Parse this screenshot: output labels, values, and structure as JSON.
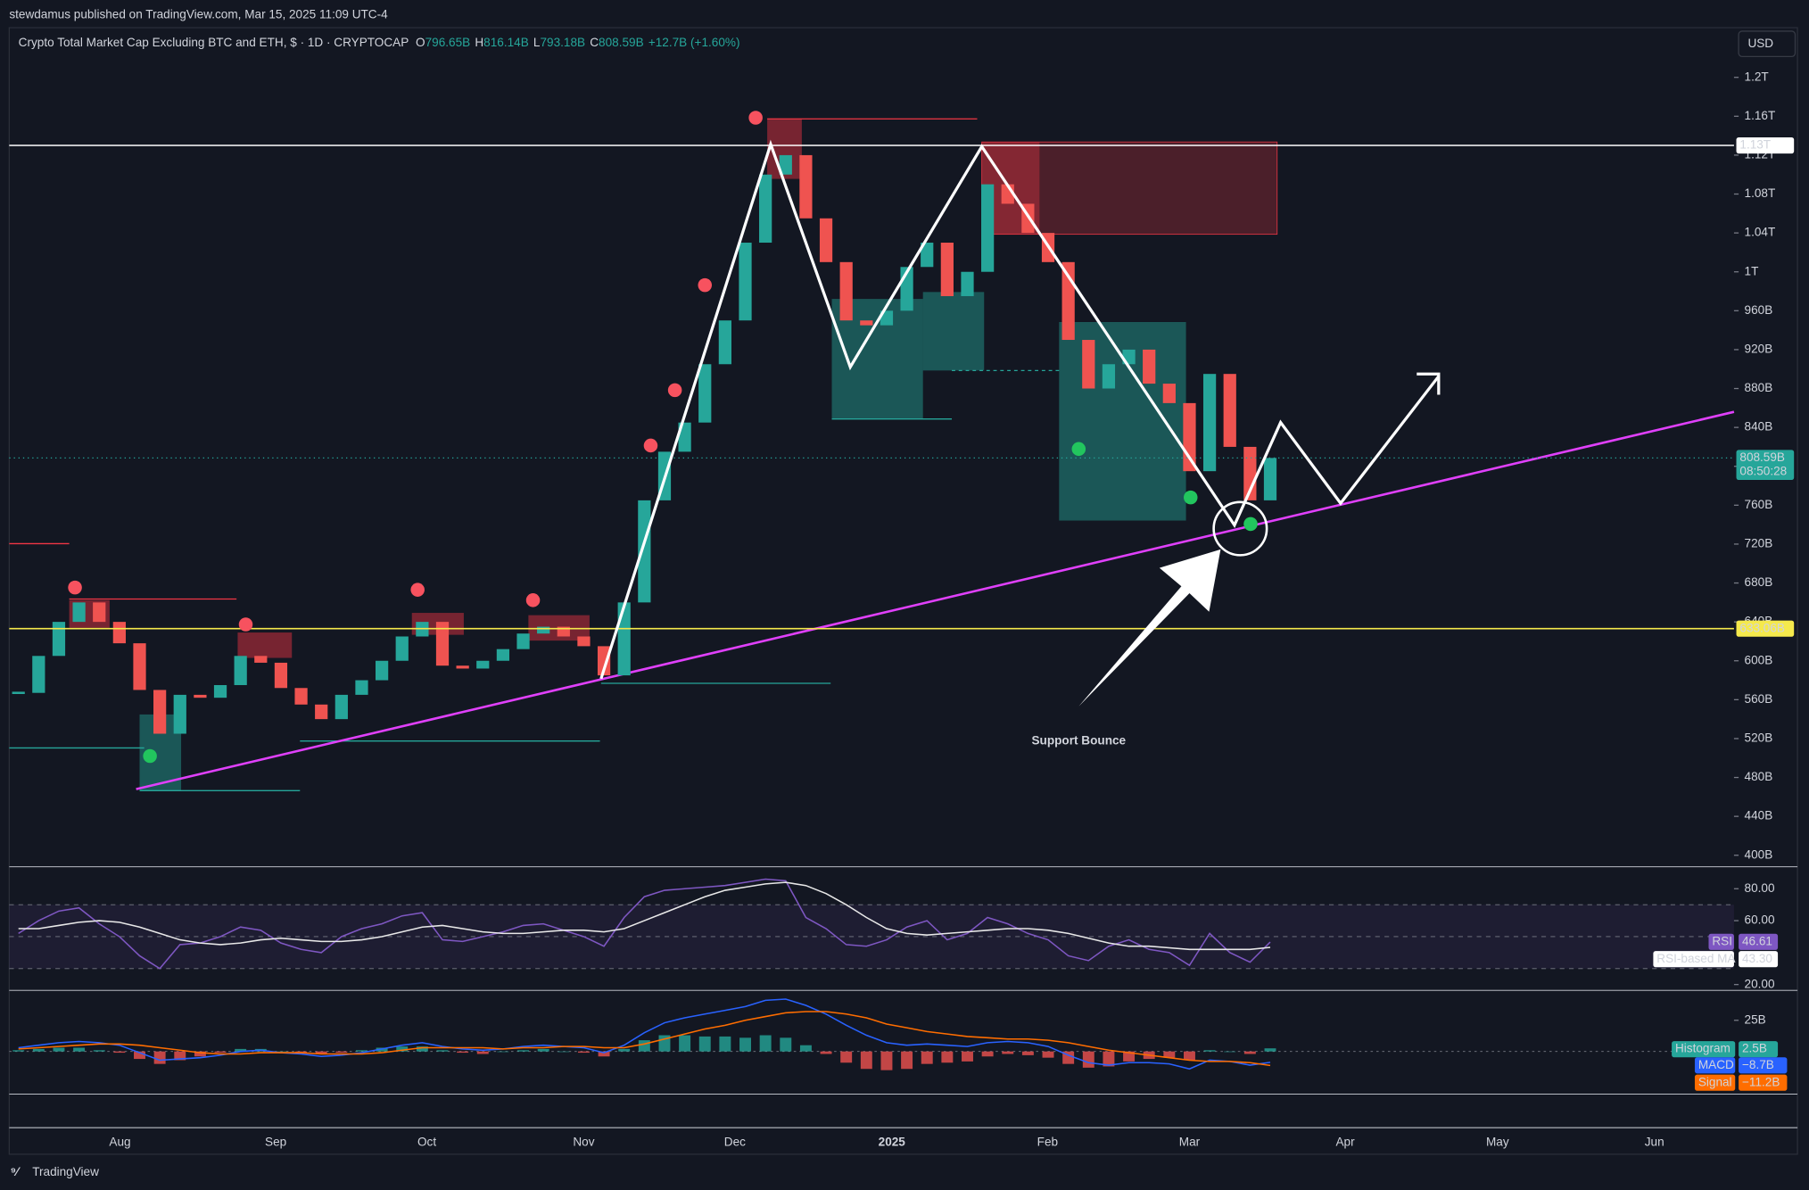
{
  "header": {
    "publisher": "stewdamus published on TradingView.com, Mar 15, 2025 11:09 UTC-4",
    "symbol": "Crypto Total Market Cap Excluding BTC and ETH, $ · 1D · CRYPTOCAP",
    "ohlc": [
      {
        "key": "O",
        "value": "796.65B"
      },
      {
        "key": "H",
        "value": "816.14B"
      },
      {
        "key": "L",
        "value": "793.18B"
      },
      {
        "key": "C",
        "value": "808.59B"
      }
    ],
    "change": "+12.7B (+1.60%)",
    "currency": "USD"
  },
  "footer": "TradingView",
  "chart_data": {
    "type": "candlestick",
    "annotation": "Support Bounce",
    "closes": [
      567,
      605,
      640,
      660,
      640,
      618,
      570,
      525,
      565,
      562,
      575,
      605,
      598,
      572,
      555,
      540,
      565,
      580,
      600,
      625,
      640,
      595,
      592,
      600,
      612,
      628,
      635,
      625,
      615,
      585,
      660,
      765,
      815,
      845,
      905,
      950,
      1030,
      1100,
      1120,
      1055,
      1010,
      950,
      945,
      960,
      1005,
      1030,
      975,
      1000,
      1090,
      1070,
      1040,
      1010,
      930,
      880,
      905,
      920,
      885,
      865,
      795,
      895,
      820,
      765,
      808.59
    ],
    "up_color": "#26a69a",
    "down_color": "#ef5350",
    "ylim": [
      389.3,
      1220.2
    ],
    "yticks": [
      {
        "value": 400,
        "label": "400B"
      },
      {
        "value": 440,
        "label": "440B"
      },
      {
        "value": 480,
        "label": "480B"
      },
      {
        "value": 520,
        "label": "520B"
      },
      {
        "value": 560,
        "label": "560B"
      },
      {
        "value": 600,
        "label": "600B"
      },
      {
        "value": 640,
        "label": "640B"
      },
      {
        "value": 680,
        "label": "680B"
      },
      {
        "value": 720,
        "label": "720B"
      },
      {
        "value": 760,
        "label": "760B"
      },
      {
        "value": 800,
        "label": "800B"
      },
      {
        "value": 840,
        "label": "840B"
      },
      {
        "value": 880,
        "label": "880B"
      },
      {
        "value": 920,
        "label": "920B"
      },
      {
        "value": 960,
        "label": "960B"
      },
      {
        "value": 1000,
        "label": "1T"
      },
      {
        "value": 1040,
        "label": "1.04T"
      },
      {
        "value": 1080,
        "label": "1.08T"
      },
      {
        "value": 1120,
        "label": "1.12T"
      },
      {
        "value": 1160,
        "label": "1.16T"
      },
      {
        "value": 1200,
        "label": "1.2T"
      }
    ],
    "x_labels": [
      "Aug",
      "Sep",
      "Oct",
      "Nov",
      "Dec",
      "2025",
      "Feb",
      "Mar",
      "Apr",
      "May",
      "Jun"
    ],
    "hlines": [
      {
        "value": 1130,
        "label": "1.13T",
        "color": "#ffffff"
      },
      {
        "value": 633.06,
        "label": "633.06B",
        "color": "#f5e94c"
      }
    ],
    "trendline": {
      "from": 468,
      "to": 856,
      "color": "#e040fb"
    },
    "last_price": {
      "value": 808.59,
      "label": "808.59B",
      "countdown": "08:50:28"
    },
    "rsi": {
      "ylim": [
        17.1,
        93
      ],
      "yticks": [
        {
          "value": 80,
          "label": "80.00"
        },
        {
          "value": 60,
          "label": "60.00"
        },
        {
          "value": 20,
          "label": "20.00"
        }
      ],
      "bands": [
        70,
        50,
        30
      ],
      "series": [
        {
          "name": "RSI",
          "color": "#7e57c2",
          "values": [
            52,
            60,
            66,
            68,
            58,
            50,
            38,
            30,
            45,
            46,
            50,
            56,
            54,
            46,
            42,
            40,
            50,
            55,
            58,
            63,
            65,
            48,
            47,
            50,
            53,
            57,
            58,
            54,
            50,
            44,
            62,
            75,
            79,
            80,
            81,
            82,
            84,
            86,
            85,
            62,
            55,
            45,
            44,
            48,
            56,
            60,
            48,
            52,
            62,
            58,
            52,
            48,
            38,
            35,
            44,
            48,
            42,
            40,
            32,
            52,
            40,
            34,
            46.61
          ],
          "last": 46.61
        },
        {
          "name": "RSI-based MA",
          "color": "#e8e8e8",
          "values": [
            55,
            55,
            57,
            59,
            60,
            59,
            56,
            52,
            48,
            46,
            45,
            46,
            48,
            49,
            48,
            47,
            47,
            48,
            50,
            53,
            56,
            57,
            55,
            53,
            52,
            52,
            53,
            54,
            54,
            53,
            55,
            60,
            65,
            70,
            75,
            79,
            81,
            83,
            84,
            82,
            77,
            70,
            62,
            55,
            52,
            51,
            52,
            53,
            54,
            55,
            55,
            54,
            52,
            49,
            46,
            44,
            44,
            43,
            42,
            42,
            42,
            42,
            43.3
          ],
          "last": {
            "value": 43.3,
            "label": "43.30"
          }
        }
      ]
    },
    "macd": {
      "ylim": [
        -34.3,
        47.2
      ],
      "yticks": [
        {
          "value": 25,
          "label": "25B"
        }
      ],
      "histogram": {
        "name": "Histogram",
        "up_color": "#26a69a",
        "down_color": "#ef5350",
        "values": [
          1,
          2,
          3,
          3,
          1,
          -1,
          -6,
          -10,
          -7,
          -4,
          -1,
          2,
          2,
          0,
          -1,
          -2,
          -1,
          1,
          3,
          4,
          4,
          1,
          -1,
          -2,
          0,
          1,
          2,
          0,
          -1,
          -4,
          2,
          9,
          13,
          13,
          12,
          12,
          11,
          13,
          11,
          5,
          -2,
          -9,
          -14,
          -15,
          -14,
          -10,
          -9,
          -8,
          -4,
          -2,
          -3,
          -5,
          -10,
          -13,
          -12,
          -8,
          -6,
          -5,
          -7,
          1,
          0,
          -2,
          2.5
        ],
        "last": {
          "value": 2.5,
          "label": "2.5B"
        }
      },
      "series": [
        {
          "name": "MACD",
          "color": "#2962ff",
          "values": [
            3,
            5,
            7,
            8,
            7,
            5,
            -1,
            -7,
            -6,
            -5,
            -3,
            0,
            1,
            -1,
            -2,
            -4,
            -3,
            -1,
            2,
            5,
            7,
            4,
            2,
            1,
            2,
            4,
            5,
            4,
            3,
            -1,
            5,
            15,
            23,
            27,
            30,
            33,
            36,
            41,
            42,
            37,
            30,
            21,
            13,
            7,
            5,
            6,
            5,
            4,
            7,
            8,
            7,
            4,
            -3,
            -9,
            -11,
            -9,
            -9,
            -10,
            -14,
            -7,
            -8,
            -11,
            -8.7
          ],
          "last": {
            "value": -8.7,
            "label": "−8.7B"
          }
        },
        {
          "name": "Signal",
          "color": "#ff6d00",
          "values": [
            2,
            3,
            4,
            5,
            6,
            6,
            5,
            3,
            1,
            -1,
            -2,
            -2,
            -1,
            -1,
            -1,
            -2,
            -2,
            -2,
            -1,
            1,
            3,
            3,
            3,
            3,
            2,
            3,
            3,
            4,
            4,
            3,
            3,
            6,
            10,
            14,
            18,
            21,
            25,
            28,
            31,
            32,
            32,
            30,
            27,
            22,
            19,
            16,
            14,
            12,
            11,
            10,
            10,
            9,
            7,
            4,
            1,
            -1,
            -3,
            -5,
            -7,
            -8,
            -8,
            -9,
            -11.2
          ],
          "last": {
            "value": -11.2,
            "label": "−11.2B"
          }
        }
      ]
    }
  }
}
